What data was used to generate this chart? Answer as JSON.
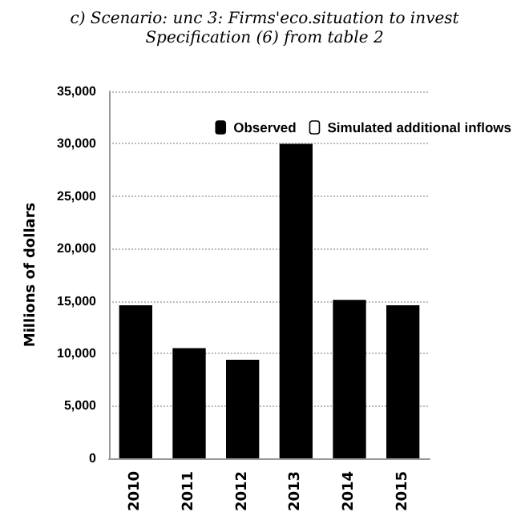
{
  "chart_data": {
    "type": "bar",
    "title": "c) Scenario: unc 3: Firms'eco.situation to invest",
    "subtitle": "Specification (6) from table 2",
    "ylabel": "Millions of dollars",
    "categories": [
      "2010",
      "2011",
      "2012",
      "2013",
      "2014",
      "2015"
    ],
    "series": [
      {
        "name": "Observed",
        "color": "#000000",
        "values": [
          14600,
          10500,
          9400,
          30000,
          15100,
          14600
        ]
      },
      {
        "name": "Simulated additional inflows",
        "color": "#ffffff",
        "values": [
          0,
          0,
          0,
          0,
          0,
          0
        ]
      }
    ],
    "stacked": true,
    "ylim": [
      0,
      35000
    ],
    "yticks": [
      {
        "value": 0,
        "label": "0"
      },
      {
        "value": 5000,
        "label": "5,000"
      },
      {
        "value": 10000,
        "label": "10,000"
      },
      {
        "value": 15000,
        "label": "15,000"
      },
      {
        "value": 20000,
        "label": "20,000"
      },
      {
        "value": 25000,
        "label": "25,000"
      },
      {
        "value": 30000,
        "label": "30,000"
      },
      {
        "value": 35000,
        "label": "35,000"
      }
    ],
    "grid": "y",
    "legend": "top right"
  }
}
